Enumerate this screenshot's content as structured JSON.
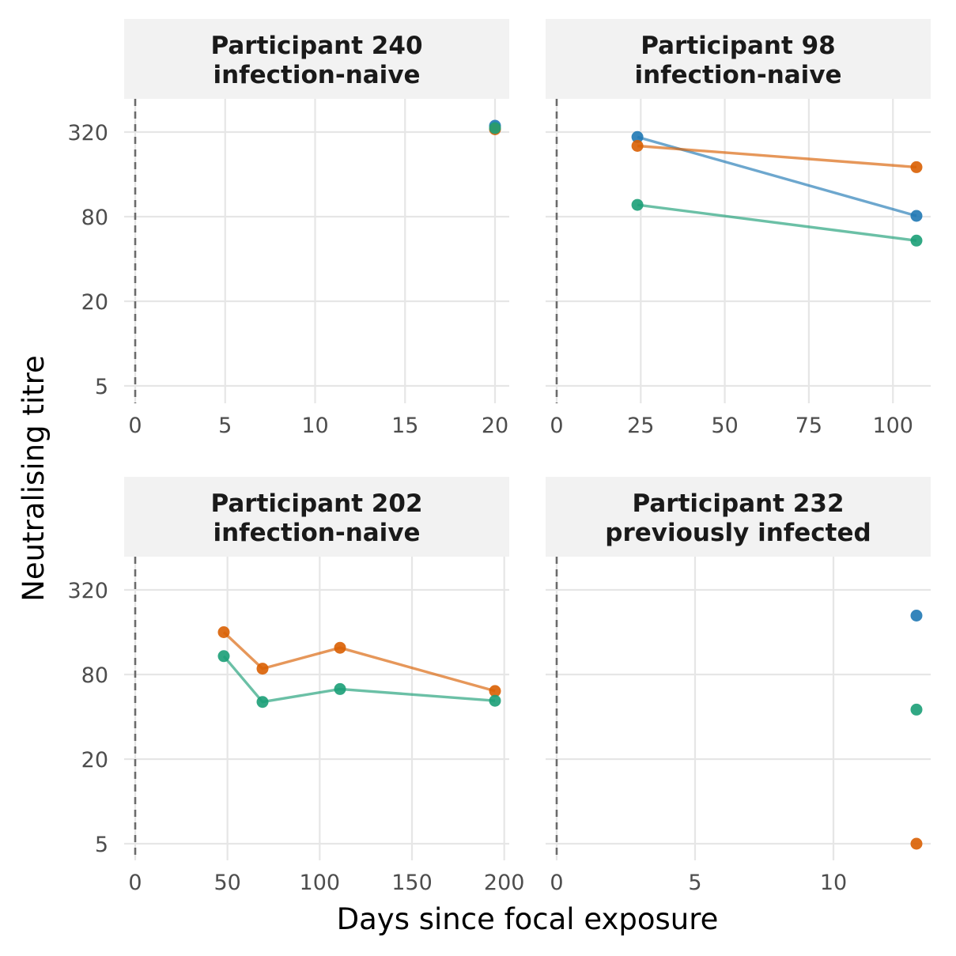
{
  "chart_data": {
    "type": "line",
    "xlabel": "Days since focal exposure",
    "ylabel": "Neutralising titre",
    "y_scale": "log",
    "y_ticks": [
      5,
      20,
      80,
      320
    ],
    "grid": true,
    "reference_line": {
      "x": 0,
      "style": "dashed"
    },
    "series_colors": [
      "#1f78b4",
      "#d95f02",
      "#1b9e77"
    ],
    "panels": [
      {
        "title": "Participant 240",
        "subtitle": "infection-naive",
        "x_ticks": [
          0,
          5,
          10,
          15,
          20
        ],
        "xlim": [
          0,
          20
        ],
        "series": [
          {
            "color": "#1f78b4",
            "points": [
              [
                20,
                355
              ]
            ]
          },
          {
            "color": "#d95f02",
            "points": [
              [
                20,
                335
              ]
            ]
          },
          {
            "color": "#1b9e77",
            "points": [
              [
                20,
                342
              ]
            ]
          }
        ]
      },
      {
        "title": "Participant 98",
        "subtitle": "infection-naive",
        "x_ticks": [
          0,
          25,
          50,
          75,
          100
        ],
        "xlim": [
          0,
          107
        ],
        "series": [
          {
            "color": "#1f78b4",
            "points": [
              [
                24,
                295
              ],
              [
                107,
                81
              ]
            ]
          },
          {
            "color": "#d95f02",
            "points": [
              [
                24,
                255
              ],
              [
                107,
                180
              ]
            ]
          },
          {
            "color": "#1b9e77",
            "points": [
              [
                24,
                97
              ],
              [
                107,
                54
              ]
            ]
          }
        ]
      },
      {
        "title": "Participant 202",
        "subtitle": "infection-naive",
        "x_ticks": [
          0,
          50,
          100,
          150,
          200
        ],
        "xlim": [
          0,
          195
        ],
        "series": [
          {
            "color": "#d95f02",
            "points": [
              [
                48,
                160
              ],
              [
                69,
                88
              ],
              [
                111,
                124
              ],
              [
                195,
                61
              ]
            ]
          },
          {
            "color": "#1b9e77",
            "points": [
              [
                48,
                108
              ],
              [
                69,
                51
              ],
              [
                111,
                63
              ],
              [
                195,
                52
              ]
            ]
          }
        ]
      },
      {
        "title": "Participant 232",
        "subtitle": "previously infected",
        "x_ticks": [
          0,
          5,
          10
        ],
        "xlim": [
          0,
          13
        ],
        "series": [
          {
            "color": "#1f78b4",
            "points": [
              [
                13,
                210
              ]
            ]
          },
          {
            "color": "#1b9e77",
            "points": [
              [
                13,
                45
              ]
            ]
          },
          {
            "color": "#d95f02",
            "points": [
              [
                13,
                5
              ]
            ]
          }
        ]
      }
    ]
  }
}
